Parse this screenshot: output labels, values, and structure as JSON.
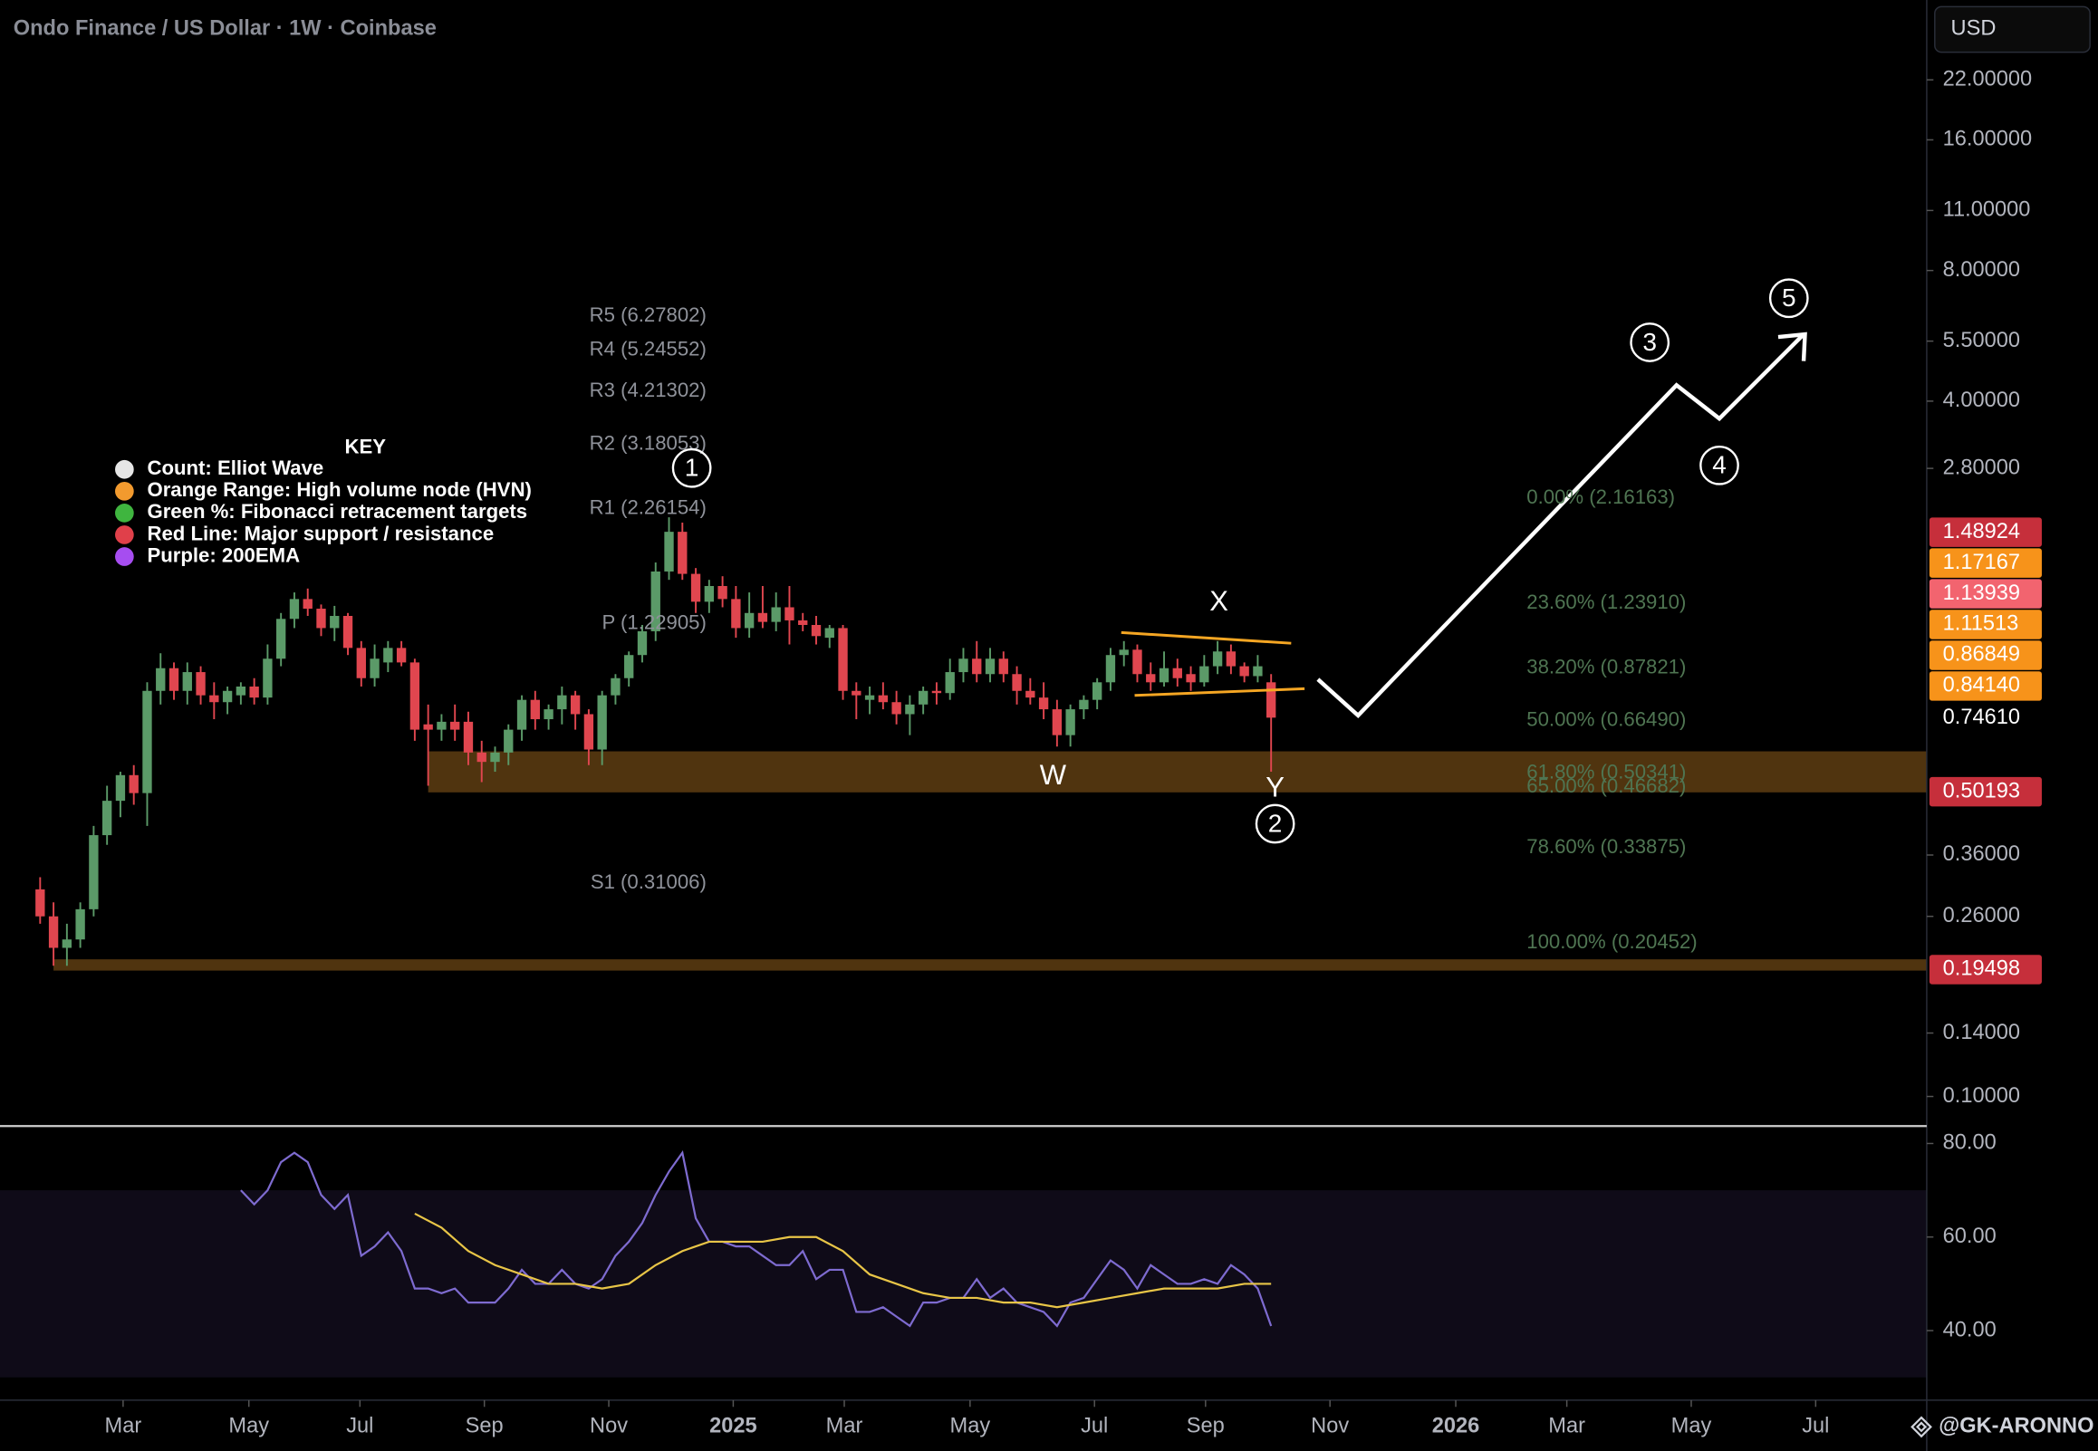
{
  "chart_data": {
    "type": "candlestick",
    "title": "Ondo Finance / US Dollar · 1W · Coinbase",
    "currency": "USD",
    "watermark": "@GK-ARONNO",
    "log_scale": true,
    "grid": false,
    "up_color": "#5b9a68",
    "down_color": "#e0464f",
    "xlim": [
      -3,
      141
    ],
    "xticks": [
      {
        "value": 6.2,
        "label": "Mar"
      },
      {
        "value": 15.6,
        "label": "May"
      },
      {
        "value": 23.9,
        "label": "Jul"
      },
      {
        "value": 33.2,
        "label": "Sep"
      },
      {
        "value": 42.5,
        "label": "Nov"
      },
      {
        "value": 51.8,
        "label": "2025"
      },
      {
        "value": 60.1,
        "label": "Mar"
      },
      {
        "value": 69.5,
        "label": "May"
      },
      {
        "value": 78.8,
        "label": "Jul"
      },
      {
        "value": 87.1,
        "label": "Sep"
      },
      {
        "value": 96.4,
        "label": "Nov"
      },
      {
        "value": 105.8,
        "label": "2026"
      },
      {
        "value": 114.1,
        "label": "Mar"
      },
      {
        "value": 123.4,
        "label": "May"
      },
      {
        "value": 132.7,
        "label": "Jul"
      }
    ],
    "ylim": [
      0.0867,
      33.6
    ],
    "yticks": [
      {
        "value": 22,
        "label": "22.00000"
      },
      {
        "value": 16,
        "label": "16.00000"
      },
      {
        "value": 11,
        "label": "11.00000"
      },
      {
        "value": 8,
        "label": "8.00000"
      },
      {
        "value": 5.5,
        "label": "5.50000"
      },
      {
        "value": 4,
        "label": "4.00000"
      },
      {
        "value": 2.8,
        "label": "2.80000"
      },
      {
        "value": 0.36,
        "label": "0.36000"
      },
      {
        "value": 0.26,
        "label": "0.26000"
      },
      {
        "value": 0.14,
        "label": "0.14000"
      },
      {
        "value": 0.1,
        "label": "0.10000"
      }
    ],
    "candles": {
      "x": [
        0,
        1,
        2,
        3,
        4,
        5,
        6,
        7,
        8,
        9,
        10,
        11,
        12,
        13,
        14,
        15,
        16,
        17,
        18,
        19,
        20,
        21,
        22,
        23,
        24,
        25,
        26,
        27,
        28,
        29,
        30,
        31,
        32,
        33,
        34,
        35,
        36,
        37,
        38,
        39,
        40,
        41,
        42,
        43,
        44,
        45,
        46,
        47,
        48,
        49,
        50,
        51,
        52,
        53,
        54,
        55,
        56,
        57,
        58,
        59,
        60,
        61,
        62,
        63,
        64,
        65,
        66,
        67,
        68,
        69,
        70,
        71,
        72,
        73,
        74,
        75,
        76,
        77,
        78,
        79,
        80,
        81,
        82,
        83,
        84,
        85,
        86,
        87,
        88,
        89,
        90,
        91,
        92
      ],
      "open": [
        0.3,
        0.26,
        0.22,
        0.23,
        0.27,
        0.4,
        0.48,
        0.55,
        0.5,
        0.86,
        0.97,
        0.86,
        0.95,
        0.84,
        0.81,
        0.84,
        0.88,
        0.83,
        1.02,
        1.26,
        1.4,
        1.33,
        1.2,
        1.28,
        1.08,
        0.92,
        1.0,
        1.08,
        1.0,
        0.72,
        0.7,
        0.73,
        0.73,
        0.62,
        0.59,
        0.62,
        0.7,
        0.82,
        0.74,
        0.78,
        0.84,
        0.76,
        0.63,
        0.84,
        0.92,
        1.04,
        1.18,
        1.62,
        2.0,
        1.6,
        1.38,
        1.5,
        1.4,
        1.2,
        1.3,
        1.24,
        1.34,
        1.25,
        1.22,
        1.14,
        1.2,
        0.86,
        0.82,
        0.84,
        0.81,
        0.76,
        0.8,
        0.86,
        0.85,
        0.95,
        1.02,
        0.94,
        1.02,
        0.94,
        0.86,
        0.83,
        0.78,
        0.68,
        0.78,
        0.82,
        0.9,
        1.04,
        1.07,
        0.94,
        0.9,
        0.97,
        0.94,
        0.9,
        0.98,
        1.06,
        0.98,
        0.93,
        0.9
      ],
      "high": [
        0.32,
        0.28,
        0.25,
        0.28,
        0.42,
        0.52,
        0.56,
        0.58,
        0.9,
        1.05,
        1.0,
        1.0,
        0.98,
        0.9,
        0.88,
        0.9,
        0.92,
        1.1,
        1.3,
        1.45,
        1.48,
        1.36,
        1.35,
        1.3,
        1.12,
        1.1,
        1.12,
        1.12,
        1.02,
        0.8,
        0.76,
        0.8,
        0.77,
        0.66,
        0.64,
        0.72,
        0.84,
        0.86,
        0.8,
        0.88,
        0.86,
        0.78,
        0.86,
        0.94,
        1.06,
        1.22,
        1.7,
        2.16,
        2.1,
        1.65,
        1.55,
        1.58,
        1.5,
        1.45,
        1.5,
        1.45,
        1.5,
        1.3,
        1.28,
        1.22,
        1.22,
        0.9,
        0.88,
        0.9,
        0.86,
        0.84,
        0.88,
        0.9,
        1.02,
        1.08,
        1.12,
        1.08,
        1.06,
        0.98,
        0.92,
        0.9,
        0.82,
        0.8,
        0.84,
        0.92,
        1.08,
        1.12,
        1.1,
        1.0,
        1.06,
        1.02,
        0.98,
        1.04,
        1.12,
        1.1,
        1.0,
        1.04,
        0.94
      ],
      "low": [
        0.25,
        0.2,
        0.2,
        0.22,
        0.26,
        0.38,
        0.44,
        0.47,
        0.42,
        0.8,
        0.82,
        0.8,
        0.8,
        0.74,
        0.76,
        0.8,
        0.8,
        0.8,
        0.98,
        1.2,
        1.28,
        1.15,
        1.12,
        1.04,
        0.88,
        0.88,
        0.95,
        0.98,
        0.66,
        0.52,
        0.66,
        0.66,
        0.58,
        0.53,
        0.56,
        0.58,
        0.66,
        0.7,
        0.7,
        0.72,
        0.7,
        0.58,
        0.58,
        0.8,
        0.88,
        1.0,
        1.12,
        1.55,
        1.55,
        1.3,
        1.3,
        1.34,
        1.14,
        1.14,
        1.2,
        1.18,
        1.1,
        1.18,
        1.1,
        1.08,
        0.82,
        0.74,
        0.76,
        0.78,
        0.72,
        0.68,
        0.76,
        0.8,
        0.82,
        0.9,
        0.9,
        0.9,
        0.9,
        0.8,
        0.8,
        0.74,
        0.64,
        0.64,
        0.74,
        0.78,
        0.86,
        0.98,
        0.9,
        0.86,
        0.88,
        0.88,
        0.86,
        0.88,
        0.94,
        0.94,
        0.9,
        0.9,
        0.56
      ],
      "close": [
        0.26,
        0.22,
        0.23,
        0.27,
        0.4,
        0.48,
        0.55,
        0.5,
        0.86,
        0.97,
        0.86,
        0.95,
        0.84,
        0.81,
        0.86,
        0.88,
        0.83,
        1.02,
        1.26,
        1.4,
        1.33,
        1.2,
        1.28,
        1.08,
        0.92,
        1.02,
        1.08,
        1.0,
        0.7,
        0.7,
        0.73,
        0.7,
        0.62,
        0.59,
        0.62,
        0.7,
        0.82,
        0.74,
        0.78,
        0.84,
        0.76,
        0.63,
        0.84,
        0.92,
        1.04,
        1.18,
        1.62,
        2.0,
        1.6,
        1.38,
        1.5,
        1.4,
        1.2,
        1.3,
        1.24,
        1.34,
        1.25,
        1.22,
        1.15,
        1.2,
        0.86,
        0.84,
        0.84,
        0.81,
        0.76,
        0.8,
        0.86,
        0.85,
        0.95,
        1.02,
        0.94,
        1.02,
        0.94,
        0.86,
        0.83,
        0.78,
        0.68,
        0.78,
        0.82,
        0.9,
        1.04,
        1.07,
        0.94,
        0.9,
        0.97,
        0.92,
        0.9,
        0.98,
        1.06,
        0.98,
        0.93,
        0.98,
        0.7461
      ]
    },
    "price_tags": [
      {
        "value": 1.48924,
        "label": "1.48924",
        "color": "#c62f3b",
        "line": true
      },
      {
        "value": 1.17167,
        "label": "1.17167",
        "color": "#f7931a",
        "line": false
      },
      {
        "value": 1.13939,
        "label": "1.13939",
        "color": "#f2646f",
        "line": false
      },
      {
        "value": 1.11513,
        "label": "1.11513",
        "color": "#f7931a",
        "line": true
      },
      {
        "value": 0.86849,
        "label": "0.86849",
        "color": "#f7931a",
        "line": false
      },
      {
        "value": 0.8414,
        "label": "0.84140",
        "color": "#f7931a",
        "line": false
      },
      {
        "value": 0.7461,
        "label": "0.74610",
        "color": "#000000",
        "line": false
      },
      {
        "value": 0.50193,
        "label": "0.50193",
        "color": "#c62f3b",
        "line": true
      },
      {
        "value": 0.19498,
        "label": "0.19498",
        "color": "#c62f3b",
        "line": true
      }
    ],
    "line_color": "#d83a48",
    "hvn_zones": [
      {
        "from": 0.50193,
        "to": 0.624,
        "start": 29
      },
      {
        "from": 0.19498,
        "to": 0.207,
        "start": 1
      }
    ],
    "hvn_color": "#6b4514",
    "pivots": {
      "color": "#8f929a",
      "levels": [
        {
          "label": "R5 (6.27802)",
          "value": 6.27802
        },
        {
          "label": "R4 (5.24552)",
          "value": 5.24552
        },
        {
          "label": "R3 (4.21302)",
          "value": 4.21302
        },
        {
          "label": "R2 (3.18053)",
          "value": 3.18053
        },
        {
          "label": "R1 (2.26154)",
          "value": 2.26154
        },
        {
          "label": "P (1.22905)",
          "value": 1.22905
        },
        {
          "label": "S1 (0.31006)",
          "value": 0.31006
        }
      ]
    },
    "fib": {
      "color": "#4f7552",
      "levels": [
        {
          "label": "0.00% (2.16163)",
          "value": 2.16163
        },
        {
          "label": "23.60% (1.23910)",
          "value": 1.2391
        },
        {
          "label": "38.20% (0.87821)",
          "value": 0.87821
        },
        {
          "label": "50.00% (0.66490)",
          "value": 0.6649
        },
        {
          "label": "61.80% (0.50341)",
          "value": 0.50341
        },
        {
          "label": "65.00% (0.46682)",
          "value": 0.46682
        },
        {
          "label": "78.60% (0.33875)",
          "value": 0.33875
        },
        {
          "label": "100.00% (0.20452)",
          "value": 0.20452
        }
      ]
    },
    "waves": [
      "1",
      "2",
      "3",
      "4",
      "5"
    ],
    "letters": [
      "W",
      "X",
      "Y"
    ],
    "key": {
      "title": "KEY",
      "items": [
        {
          "label": "Count: Elliot Wave",
          "color": "#e6e6e6"
        },
        {
          "label": "Orange Range: High volume node (HVN)",
          "color": "#f29a2e"
        },
        {
          "label": "Green %: Fibonacci retracement targets",
          "color": "#3fb53f"
        },
        {
          "label": "Red Line: Major support / resistance",
          "color": "#e0404a"
        },
        {
          "label": "Purple: 200EMA",
          "color": "#a64df0"
        }
      ]
    },
    "rsi": {
      "ylim": [
        25.7,
        84.3
      ],
      "yticks": [
        {
          "value": 80,
          "label": "80.00"
        },
        {
          "value": 60,
          "label": "60.00"
        },
        {
          "value": 40,
          "label": "40.00"
        }
      ],
      "levels": [
        70,
        50,
        30
      ],
      "band": [
        30,
        70
      ],
      "color": "#7e6bd0",
      "x": [
        15,
        16,
        17,
        18,
        19,
        20,
        21,
        22,
        23,
        24,
        25,
        26,
        27,
        28,
        29,
        30,
        31,
        32,
        33,
        34,
        35,
        36,
        37,
        38,
        39,
        40,
        41,
        42,
        43,
        44,
        45,
        46,
        47,
        48,
        49,
        50,
        51,
        52,
        53,
        54,
        55,
        56,
        57,
        58,
        59,
        60,
        61,
        62,
        63,
        64,
        65,
        66,
        67,
        68,
        69,
        70,
        71,
        72,
        73,
        74,
        75,
        76,
        77,
        78,
        79,
        80,
        81,
        82,
        83,
        84,
        85,
        86,
        87,
        88,
        89,
        90,
        91,
        92
      ],
      "values": [
        70,
        67,
        70,
        76,
        78,
        76,
        69,
        66,
        69,
        56,
        58,
        61,
        57,
        49,
        49,
        48,
        49,
        46,
        46,
        46,
        49,
        53,
        50,
        50,
        53,
        50,
        49,
        51,
        56,
        59,
        63,
        69,
        74,
        78,
        64,
        59,
        59,
        58,
        58,
        56,
        54,
        54,
        57,
        51,
        53,
        53,
        44,
        44,
        45,
        43,
        41,
        46,
        46,
        47,
        47,
        51,
        47,
        49,
        46,
        45,
        44,
        41,
        46,
        47,
        51,
        55,
        53,
        49,
        54,
        52,
        50,
        50,
        51,
        50,
        54,
        52,
        49,
        41
      ],
      "ma": {
        "color": "#e8c547",
        "x": [
          28,
          30,
          32,
          34,
          36,
          38,
          40,
          42,
          44,
          46,
          48,
          50,
          52,
          54,
          56,
          58,
          60,
          62,
          64,
          66,
          68,
          70,
          72,
          74,
          76,
          78,
          80,
          82,
          84,
          86,
          88,
          90,
          92
        ],
        "values": [
          65,
          62,
          57,
          54,
          52,
          50,
          50,
          49,
          50,
          54,
          57,
          59,
          59,
          59,
          60,
          60,
          57,
          52,
          50,
          48,
          47,
          47,
          46,
          46,
          45,
          46,
          47,
          48,
          49,
          49,
          49,
          50,
          50
        ]
      }
    }
  }
}
